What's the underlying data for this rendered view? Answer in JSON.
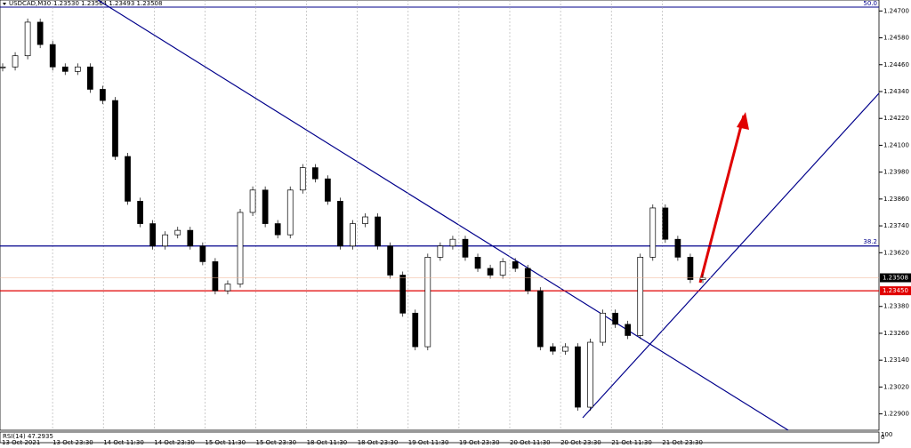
{
  "chart_data": {
    "type": "candlestick",
    "title": "USDCAD,M30",
    "quote": "1.23530 1.23564 1.23493 1.23508",
    "time_labels": [
      "13 Oct 2021",
      "13 Oct 23:30",
      "14 Oct 11:30",
      "14 Oct 23:30",
      "15 Oct 11:30",
      "15 Oct 23:30",
      "18 Oct 11:30",
      "18 Oct 23:30",
      "19 Oct 11:30",
      "19 Oct 23:30",
      "20 Oct 11:30",
      "20 Oct 23:30",
      "21 Oct 11:30",
      "21 Oct 23:30"
    ],
    "values": [
      1.2445,
      1.245,
      1.2465,
      1.2455,
      1.2445,
      1.2443,
      1.2445,
      1.2435,
      1.243,
      1.2405,
      1.2385,
      1.2375,
      1.2365,
      1.237,
      1.2372,
      1.2365,
      1.2358,
      1.2345,
      1.2348,
      1.238,
      1.239,
      1.2375,
      1.237,
      1.239,
      1.24,
      1.2395,
      1.2385,
      1.2365,
      1.2375,
      1.2378,
      1.2365,
      1.2352,
      1.2335,
      1.232,
      1.236,
      1.2365,
      1.2368,
      1.236,
      1.2355,
      1.2352,
      1.2358,
      1.2355,
      1.2345,
      1.232,
      1.2318,
      1.232,
      1.2293,
      1.2322,
      1.2335,
      1.233,
      1.2325,
      1.236,
      1.2382,
      1.2368,
      1.236,
      1.235,
      1.23508
    ],
    "ylim": [
      1.22827,
      1.24749
    ],
    "yticks": [
      {
        "value": 1.247,
        "label": "1.24700"
      },
      {
        "value": 1.2458,
        "label": "1.24580"
      },
      {
        "value": 1.2446,
        "label": "1.24460"
      },
      {
        "value": 1.2434,
        "label": "1.24340"
      },
      {
        "value": 1.2422,
        "label": "1.24220"
      },
      {
        "value": 1.241,
        "label": "1.24100"
      },
      {
        "value": 1.2398,
        "label": "1.23980"
      },
      {
        "value": 1.2386,
        "label": "1.23860"
      },
      {
        "value": 1.2374,
        "label": "1.23740"
      },
      {
        "value": 1.2362,
        "label": "1.23620"
      },
      {
        "value": 1.2338,
        "label": "1.23380"
      },
      {
        "value": 1.2326,
        "label": "1.23260"
      },
      {
        "value": 1.2314,
        "label": "1.23140"
      },
      {
        "value": 1.2302,
        "label": "1.23020"
      },
      {
        "value": 1.229,
        "label": "1.22900"
      }
    ],
    "levels": [
      {
        "value": 1.2365,
        "label": "38.2",
        "color": "#00008b"
      },
      {
        "value": 1.2345,
        "label": "1.23450",
        "color": "#e00000"
      }
    ],
    "top_level_label": "50.0",
    "current_price": {
      "value": 1.23508,
      "label": "1.23508"
    },
    "indicator": "RSI(14) 47.2935",
    "indicator_ticks": [
      "100",
      "0"
    ]
  }
}
